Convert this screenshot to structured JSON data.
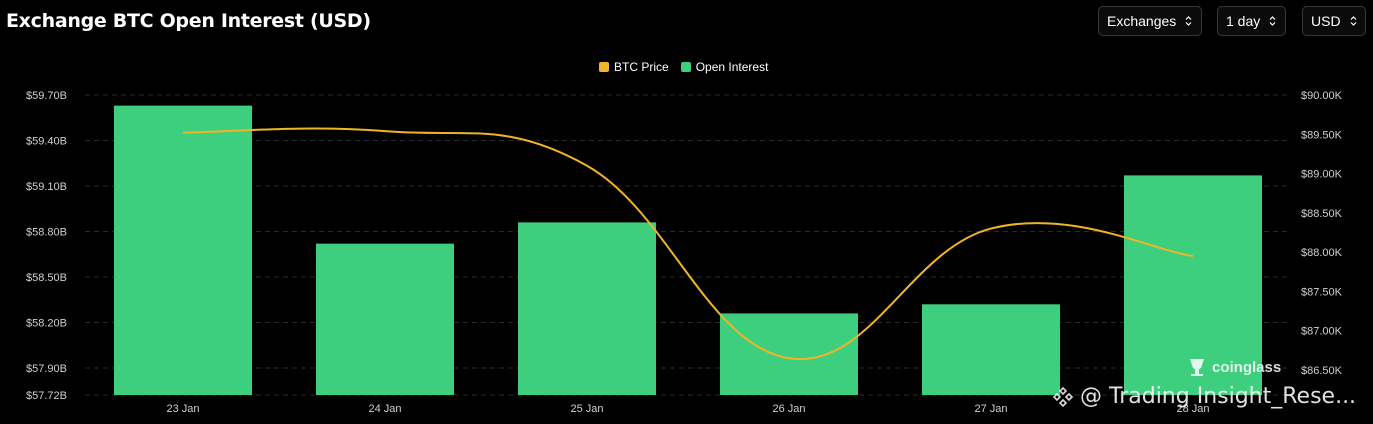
{
  "header": {
    "title": "Exchange BTC Open Interest (USD)"
  },
  "controls": {
    "exchanges": "Exchanges",
    "interval": "1 day",
    "currency": "USD"
  },
  "legend": [
    {
      "label": "BTC Price",
      "color": "#f0b429"
    },
    {
      "label": "Open Interest",
      "color": "#3ecf7e"
    }
  ],
  "watermark": {
    "brand": "coinglass",
    "source": "@ Trading Insight_Rese..."
  },
  "chart_data": {
    "type": "bar",
    "categories": [
      "23 Jan",
      "24 Jan",
      "25 Jan",
      "26 Jan",
      "27 Jan",
      "28 Jan"
    ],
    "series": [
      {
        "name": "Open Interest",
        "type": "bar",
        "axis": "left",
        "unit": "USD",
        "color": "#3ecf7e",
        "values": [
          59.63,
          58.72,
          58.86,
          58.26,
          58.32,
          59.17
        ]
      },
      {
        "name": "BTC Price",
        "type": "line",
        "axis": "right",
        "unit": "USD",
        "color": "#f0b429",
        "values": [
          89520,
          89540,
          89100,
          86650,
          88300,
          87950
        ]
      }
    ],
    "y_left": {
      "ticks": [
        "$59.70B",
        "$59.40B",
        "$59.10B",
        "$58.80B",
        "$58.50B",
        "$58.20B",
        "$57.90B",
        "$57.72B"
      ],
      "tick_values": [
        59.7,
        59.4,
        59.1,
        58.8,
        58.5,
        58.2,
        57.9,
        57.72
      ],
      "range": [
        57.72,
        59.7
      ]
    },
    "y_right": {
      "ticks": [
        "$90.00K",
        "$89.50K",
        "$89.00K",
        "$88.50K",
        "$88.00K",
        "$87.50K",
        "$87.00K",
        "$86.50K"
      ],
      "tick_values": [
        90000,
        89500,
        89000,
        88500,
        88000,
        87500,
        87000,
        86500
      ],
      "range": [
        86200,
        90000
      ]
    },
    "grid": "horizontal dashed",
    "legend_position": "top-center"
  }
}
